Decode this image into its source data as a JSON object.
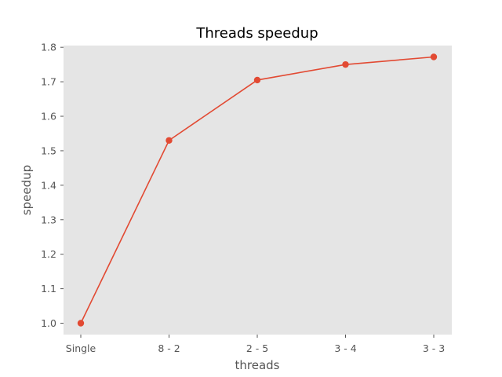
{
  "chart_data": {
    "type": "line",
    "title": "Threads speedup",
    "xlabel": "threads",
    "ylabel": "speedup",
    "categories": [
      "Single",
      "8 - 2",
      "2 - 5",
      "3 - 4",
      "3 - 3"
    ],
    "series": [
      {
        "values": [
          1.0,
          1.53,
          1.705,
          1.75,
          1.772
        ]
      }
    ],
    "ylim": [
      0.967,
      1.805
    ],
    "yticks": [
      1.0,
      1.1,
      1.2,
      1.3,
      1.4,
      1.5,
      1.6,
      1.7,
      1.8
    ],
    "ytick_labels": [
      "1.0",
      "1.1",
      "1.2",
      "1.3",
      "1.4",
      "1.5",
      "1.6",
      "1.7",
      "1.8"
    ],
    "grid": false,
    "colors": {
      "background": "#e5e5e5",
      "series": "#e24a33",
      "text": "#555555"
    }
  }
}
